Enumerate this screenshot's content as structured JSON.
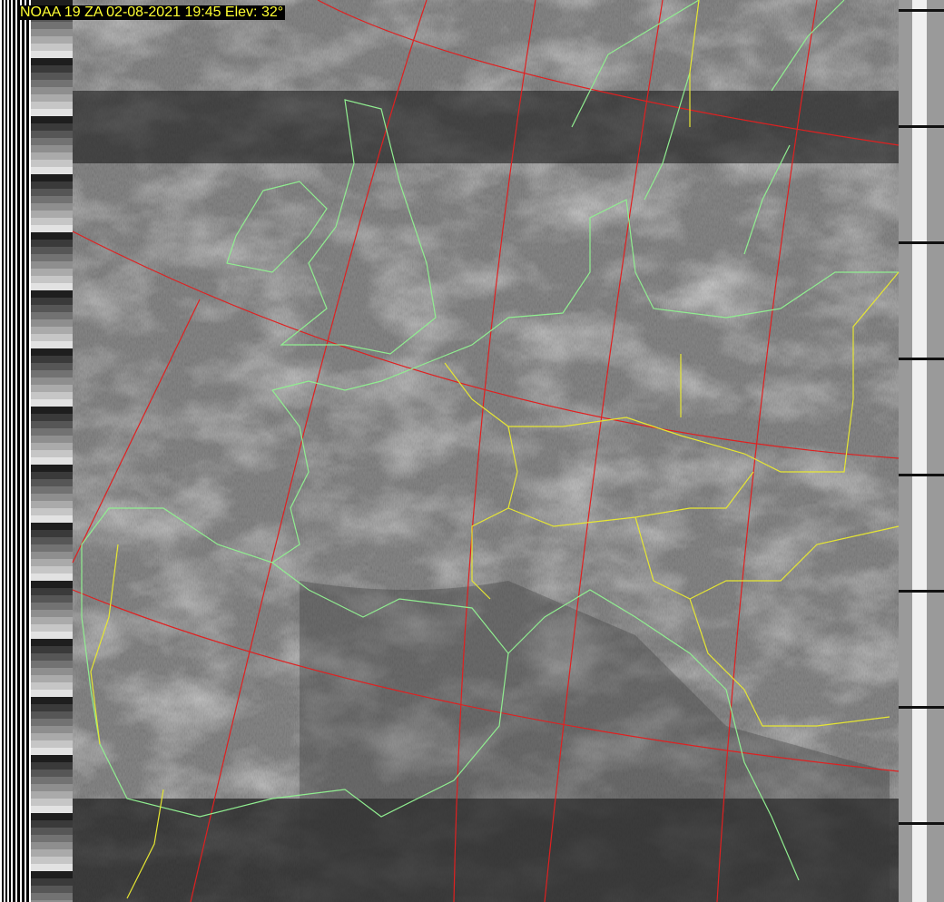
{
  "caption": "NOAA 19 ZA 02-08-2021 19:45 Elev: 32°",
  "colors": {
    "caption_text": "#ffff33",
    "caption_bg": "#000000",
    "graticule": "#e02020",
    "coastline": "#90ee90",
    "borders": "#e6e632"
  }
}
